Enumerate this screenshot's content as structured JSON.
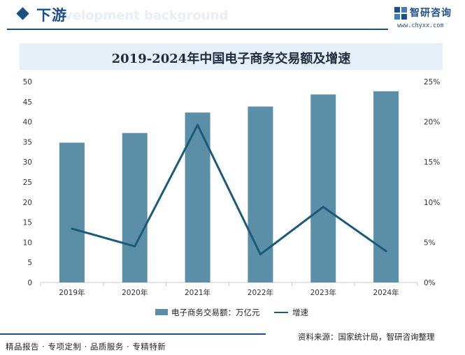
{
  "header": {
    "section_title": "下游",
    "background_text": "velopment background"
  },
  "logo": {
    "name": "智研咨询",
    "url": "www.chyxx.com",
    "icon": "zhiyan-logo-icon"
  },
  "footer": {
    "tagline": "精品报告 · 专项定制 · 品质服务 · 专精特新",
    "source": "资料来源：国家统计局，智研咨询整理"
  },
  "colors": {
    "accent": "#1c4f86",
    "bar": "#5b8fa8",
    "line": "#1b5a78",
    "title_band": "#e6f0f9"
  },
  "chart_data": {
    "type": "bar",
    "title": "2019-2024年中国电子商务交易额及增速",
    "categories": [
      "2019年",
      "2020年",
      "2021年",
      "2022年",
      "2023年",
      "2024年"
    ],
    "y_left": {
      "ticks": [
        "0",
        "5",
        "10",
        "15",
        "20",
        "25",
        "30",
        "35",
        "40",
        "45",
        "50"
      ],
      "ylim": [
        0,
        50
      ]
    },
    "y_right": {
      "ticks": [
        "0%",
        "5%",
        "10%",
        "15%",
        "20%",
        "25%"
      ],
      "ylim": [
        0,
        25
      ]
    },
    "series": [
      {
        "name": "电子商务交易额：万亿元",
        "type": "bar",
        "axis": "left",
        "values": [
          34.8,
          37.2,
          42.3,
          43.8,
          46.8,
          47.6
        ]
      },
      {
        "name": "增速",
        "type": "line",
        "axis": "right",
        "values": [
          6.7,
          4.5,
          19.6,
          3.5,
          9.4,
          3.9
        ]
      }
    ],
    "legend_position": "bottom",
    "grid": false
  }
}
